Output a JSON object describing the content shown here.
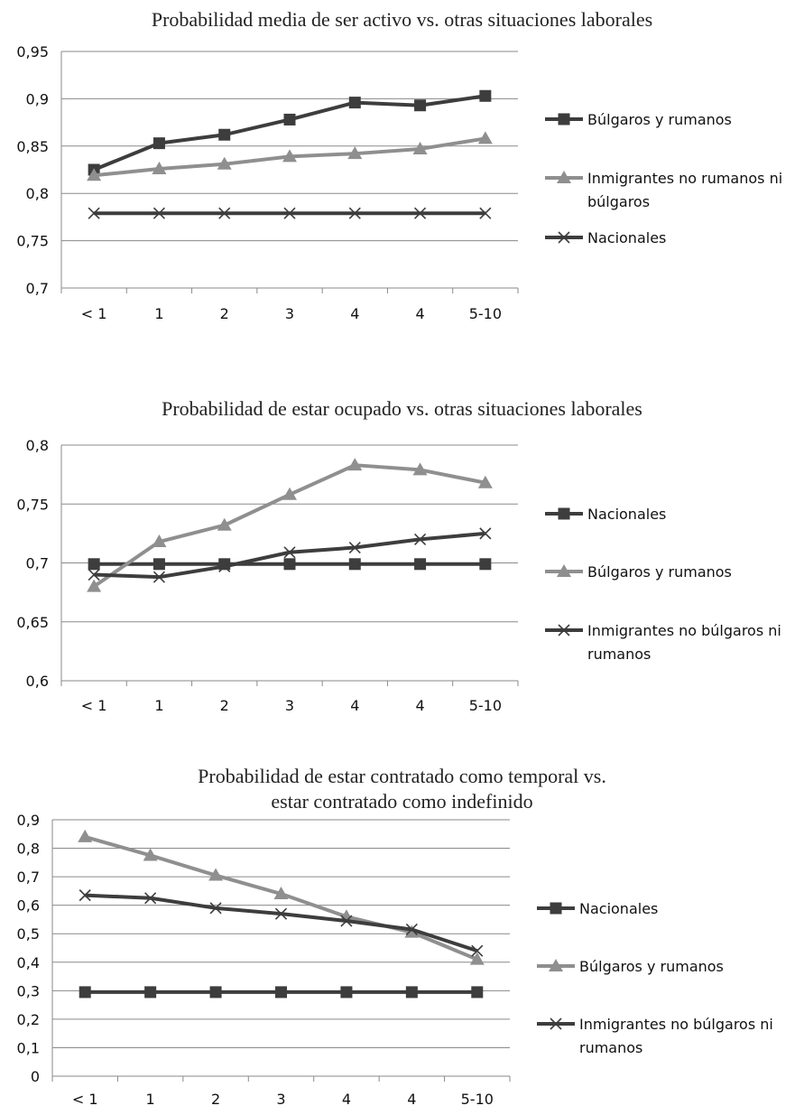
{
  "colors": {
    "dark": "#3d3d3d",
    "light": "#8f8f8f",
    "axis": "#8a8a8a",
    "grid": "#8a8a8a"
  },
  "chart_data": [
    {
      "type": "line",
      "title": [
        "Probabilidad media de ser activo vs. otras situaciones laborales"
      ],
      "categories": [
        "< 1",
        "1",
        "2",
        "3",
        "4",
        "4",
        "5-10"
      ],
      "yticks": [
        "0,95",
        "0,9",
        "0,85",
        "0,8",
        "0,75",
        "0,7"
      ],
      "ylim": [
        0.7,
        0.95
      ],
      "grid": true,
      "legend_position": "right",
      "series": [
        {
          "name": "Búlgaros y rumanos",
          "marker": "square",
          "tone": "dark",
          "values": [
            0.825,
            0.853,
            0.862,
            0.878,
            0.896,
            0.893,
            0.903
          ]
        },
        {
          "name": "Inmigrantes  no rumanos ni búlgaros",
          "legend_lines": [
            "Inmigrantes  no rumanos ni",
            "búlgaros"
          ],
          "marker": "triangle",
          "tone": "light",
          "values": [
            0.819,
            0.826,
            0.831,
            0.839,
            0.842,
            0.847,
            0.858
          ]
        },
        {
          "name": "Nacionales",
          "marker": "x",
          "tone": "dark",
          "values": [
            0.779,
            0.779,
            0.779,
            0.779,
            0.779,
            0.779,
            0.779
          ]
        }
      ]
    },
    {
      "type": "line",
      "title": [
        "Probabilidad de estar ocupado vs. otras situaciones laborales"
      ],
      "categories": [
        "< 1",
        "1",
        "2",
        "3",
        "4",
        "4",
        "5-10"
      ],
      "yticks": [
        "0,8",
        "0,75",
        "0,7",
        "0,65",
        "0,6"
      ],
      "ylim": [
        0.6,
        0.8
      ],
      "grid": true,
      "legend_position": "right",
      "series": [
        {
          "name": "Nacionales",
          "marker": "square",
          "tone": "dark",
          "values": [
            0.699,
            0.699,
            0.699,
            0.699,
            0.699,
            0.699,
            0.699
          ]
        },
        {
          "name": "Búlgaros y rumanos",
          "marker": "triangle",
          "tone": "light",
          "values": [
            0.68,
            0.718,
            0.732,
            0.758,
            0.783,
            0.779,
            0.768
          ]
        },
        {
          "name": "Inmigrantes no búlgaros ni rumanos",
          "legend_lines": [
            "Inmigrantes no búlgaros ni",
            "rumanos"
          ],
          "marker": "x",
          "tone": "dark",
          "values": [
            0.69,
            0.688,
            0.697,
            0.709,
            0.713,
            0.72,
            0.725
          ]
        }
      ]
    },
    {
      "type": "line",
      "title": [
        "Probabilidad de estar contratado como temporal vs.",
        "estar contratado como indefinido"
      ],
      "categories": [
        "< 1",
        "1",
        "2",
        "3",
        "4",
        "4",
        "5-10"
      ],
      "yticks": [
        "0,9",
        "0,8",
        "0,7",
        "0,6",
        "0,5",
        "0,4",
        "0,3",
        "0,2",
        "0,1",
        "0"
      ],
      "ylim": [
        0,
        0.9
      ],
      "grid": true,
      "legend_position": "right",
      "series": [
        {
          "name": "Nacionales",
          "marker": "square",
          "tone": "dark",
          "values": [
            0.295,
            0.295,
            0.295,
            0.295,
            0.295,
            0.295,
            0.295
          ]
        },
        {
          "name": "Búlgaros y rumanos",
          "marker": "triangle",
          "tone": "light",
          "values": [
            0.84,
            0.775,
            0.705,
            0.64,
            0.56,
            0.505,
            0.41
          ]
        },
        {
          "name": "Inmigrantes no búlgaros ni rumanos",
          "legend_lines": [
            "Inmigrantes no búlgaros ni",
            "rumanos"
          ],
          "marker": "x",
          "tone": "dark",
          "values": [
            0.635,
            0.625,
            0.59,
            0.57,
            0.545,
            0.515,
            0.44
          ]
        }
      ]
    }
  ]
}
